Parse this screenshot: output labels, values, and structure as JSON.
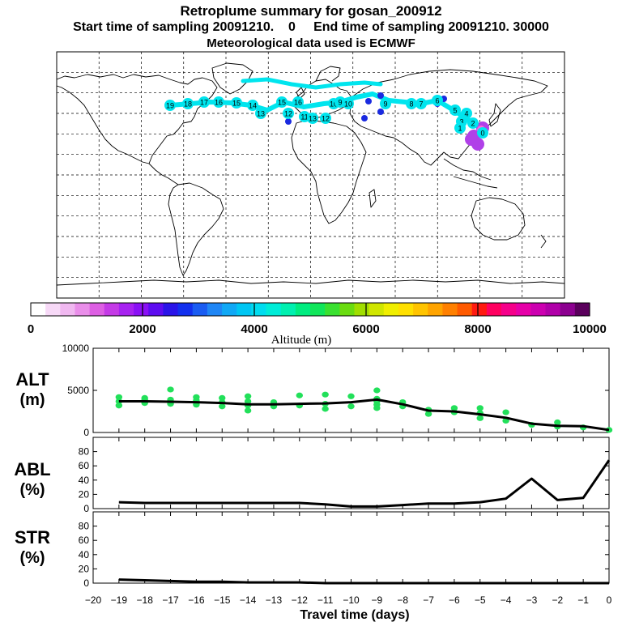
{
  "header": {
    "title": "Retroplume summary for gosan_200912",
    "sampling_line": "Start time of sampling 20091210.    0     End time of sampling 20091210. 30000",
    "met_line": "Meteorological data used is ECMWF"
  },
  "colors": {
    "trajectory": "#00e5ee",
    "alt_points": "#22e05a",
    "line": "#000000"
  },
  "colorbar": {
    "label": "Altitude  (m)",
    "tick_labels": [
      "0",
      "2000",
      "4000",
      "6000",
      "8000",
      "10000"
    ],
    "colors": [
      "#ffffff",
      "#f7d9f7",
      "#f0b8f0",
      "#e98ee9",
      "#dd5fe3",
      "#c43ae6",
      "#a722f0",
      "#8a10f5",
      "#5d0cf0",
      "#2a14e8",
      "#1230ee",
      "#1a5cf2",
      "#1f86f5",
      "#10a8f5",
      "#00c6f3",
      "#00dcef",
      "#00ecd8",
      "#00f0b0",
      "#00ec80",
      "#10e65a",
      "#3ae030",
      "#6adc10",
      "#a0de00",
      "#d0e600",
      "#f0ee00",
      "#ffe000",
      "#ffc400",
      "#ffa400",
      "#ff8000",
      "#ff5a00",
      "#ff1a10",
      "#ff0060",
      "#f5008a",
      "#e600a8",
      "#cc00b0",
      "#b000a8",
      "#8c0090",
      "#5a005c"
    ]
  },
  "map": {
    "meridians": [
      -150,
      -120,
      -90,
      -60,
      -30,
      0,
      30,
      60,
      90,
      120,
      150
    ],
    "parallels": [
      75,
      60,
      45,
      30,
      15,
      0,
      -15,
      -30,
      -45,
      -60,
      -75
    ],
    "trajectory_day_labels": [
      "19",
      "18",
      "17",
      "16",
      "15",
      "14",
      "13",
      "15",
      "16",
      "12",
      "11",
      "10",
      "9",
      "13",
      "12",
      "10",
      "9",
      "8",
      "7",
      "6",
      "5",
      "4",
      "3",
      "2",
      "1",
      "0"
    ]
  },
  "chart_data": [
    {
      "id": "alt",
      "type": "line+scatter",
      "panel_label": [
        "ALT",
        "(m)"
      ],
      "ylim": [
        0,
        10000
      ],
      "yticks": [
        0,
        5000,
        10000
      ],
      "x": [
        -19,
        -18,
        -17,
        -16,
        -15,
        -14,
        -13,
        -12,
        -11,
        -10,
        -9,
        -8,
        -7,
        -6,
        -5,
        -4,
        -3,
        -2,
        -1,
        0
      ],
      "line_values": [
        3700,
        3700,
        3650,
        3600,
        3500,
        3350,
        3350,
        3400,
        3450,
        3600,
        3900,
        3350,
        2600,
        2500,
        2150,
        1750,
        1050,
        800,
        750,
        300
      ],
      "scatter": [
        [
          -19,
          3200
        ],
        [
          -19,
          3700
        ],
        [
          -19,
          4200
        ],
        [
          -18,
          3500
        ],
        [
          -18,
          3900
        ],
        [
          -18,
          4100
        ],
        [
          -17,
          3400
        ],
        [
          -17,
          3900
        ],
        [
          -17,
          5100
        ],
        [
          -16,
          3300
        ],
        [
          -16,
          3800
        ],
        [
          -16,
          4200
        ],
        [
          -15,
          3100
        ],
        [
          -15,
          3600
        ],
        [
          -15,
          4100
        ],
        [
          -14,
          2600
        ],
        [
          -14,
          3200
        ],
        [
          -14,
          3700
        ],
        [
          -14,
          4300
        ],
        [
          -13,
          3100
        ],
        [
          -13,
          3600
        ],
        [
          -12,
          3200
        ],
        [
          -12,
          4400
        ],
        [
          -11,
          2800
        ],
        [
          -11,
          3400
        ],
        [
          -11,
          4500
        ],
        [
          -10,
          3100
        ],
        [
          -10,
          4300
        ],
        [
          -9,
          2900
        ],
        [
          -9,
          3300
        ],
        [
          -9,
          3700
        ],
        [
          -9,
          4000
        ],
        [
          -9,
          5000
        ],
        [
          -8,
          3100
        ],
        [
          -8,
          3600
        ],
        [
          -7,
          2200
        ],
        [
          -7,
          2700
        ],
        [
          -6,
          2400
        ],
        [
          -6,
          2900
        ],
        [
          -5,
          1700
        ],
        [
          -5,
          2300
        ],
        [
          -5,
          2900
        ],
        [
          -4,
          1400
        ],
        [
          -4,
          2400
        ],
        [
          -3,
          900
        ],
        [
          -2,
          700
        ],
        [
          -2,
          1200
        ],
        [
          -1,
          600
        ],
        [
          0,
          300
        ]
      ]
    },
    {
      "id": "abl",
      "type": "line",
      "panel_label": [
        "ABL",
        "(%)"
      ],
      "ylim": [
        0,
        100
      ],
      "yticks": [
        0,
        20,
        40,
        60,
        80
      ],
      "x": [
        -19,
        -18,
        -17,
        -16,
        -15,
        -14,
        -13,
        -12,
        -11,
        -10,
        -9,
        -8,
        -7,
        -6,
        -5,
        -4,
        -3,
        -2,
        -1,
        0
      ],
      "values": [
        9,
        8,
        8,
        8,
        8,
        8,
        8,
        8,
        6,
        3,
        3,
        5,
        7,
        7,
        9,
        14,
        42,
        12,
        15,
        68
      ]
    },
    {
      "id": "str",
      "type": "line",
      "panel_label": [
        "STR",
        "(%)"
      ],
      "ylim": [
        0,
        100
      ],
      "yticks": [
        0,
        20,
        40,
        60,
        80
      ],
      "x": [
        -19,
        -18,
        -17,
        -16,
        -15,
        -14,
        -13,
        -12,
        -11,
        -10,
        -9,
        -8,
        -7,
        -6,
        -5,
        -4,
        -3,
        -2,
        -1,
        0
      ],
      "values": [
        5,
        4,
        3,
        2,
        2,
        1,
        1,
        1,
        0,
        0,
        0,
        0,
        0,
        0,
        0,
        0,
        0,
        0,
        0,
        0
      ]
    }
  ],
  "x_axis": {
    "label": "Travel time (days)",
    "ticks": [
      -20,
      -19,
      -18,
      -17,
      -16,
      -15,
      -14,
      -13,
      -12,
      -11,
      -10,
      -9,
      -8,
      -7,
      -6,
      -5,
      -4,
      -3,
      -2,
      -1,
      0
    ],
    "tick_labels": [
      "−20",
      "−19",
      "−18",
      "−17",
      "−16",
      "−15",
      "−14",
      "−13",
      "−12",
      "−11",
      "−10",
      "−9",
      "−8",
      "−7",
      "−6",
      "−5",
      "−4",
      "−3",
      "−2",
      "−1",
      "0"
    ]
  }
}
